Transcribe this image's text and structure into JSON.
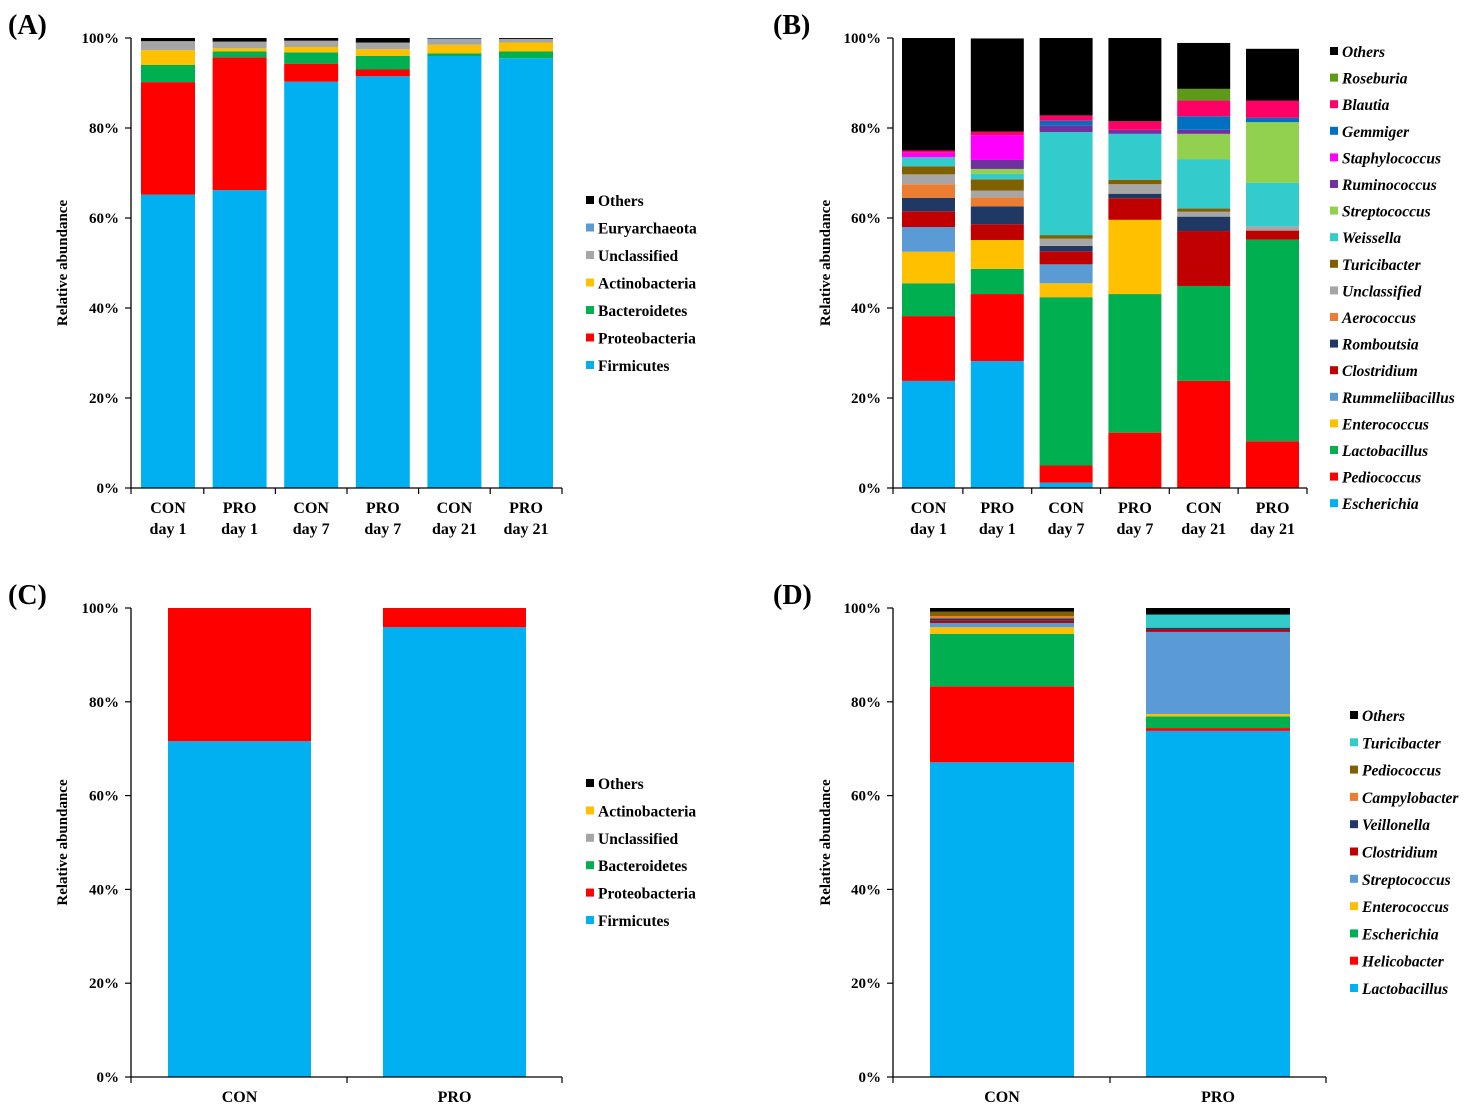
{
  "chart_data": [
    {
      "panel": "(A)",
      "type": "bar",
      "stacked": true,
      "ylabel": "Relative abundance",
      "ylim": [
        0,
        100
      ],
      "yticks": [
        "0%",
        "20%",
        "40%",
        "60%",
        "80%",
        "100%"
      ],
      "categories": [
        [
          "CON",
          "day 1"
        ],
        [
          "PRO",
          "day 1"
        ],
        [
          "CON",
          "day 7"
        ],
        [
          "PRO",
          "day 7"
        ],
        [
          "CON",
          "day 21"
        ],
        [
          "PRO",
          "day 21"
        ]
      ],
      "italic_legend": false,
      "series": [
        {
          "name": "Firmicutes",
          "color": "#00B0F0",
          "values": [
            65.2,
            66.2,
            90.3,
            91.5,
            96.0,
            95.5
          ]
        },
        {
          "name": "Proteobacteria",
          "color": "#FF0000",
          "values": [
            25.0,
            29.5,
            4.0,
            1.5,
            0.0,
            0.0
          ]
        },
        {
          "name": "Bacteroidetes",
          "color": "#00B050",
          "values": [
            3.8,
            1.3,
            2.5,
            3.0,
            0.6,
            1.5
          ]
        },
        {
          "name": "Actinobacteria",
          "color": "#FFC000",
          "values": [
            3.3,
            0.7,
            1.2,
            1.5,
            1.9,
            2.0
          ]
        },
        {
          "name": "Unclassified",
          "color": "#A6A6A6",
          "values": [
            2.0,
            1.5,
            1.4,
            1.5,
            1.2,
            0.8
          ]
        },
        {
          "name": "Euryarchaeota",
          "color": "#5B9BD5",
          "values": [
            0.0,
            0.0,
            0.0,
            0.0,
            0.2,
            0.0
          ]
        },
        {
          "name": "Others",
          "color": "#000000",
          "values": [
            0.7,
            0.8,
            0.6,
            1.0,
            0.1,
            0.2
          ]
        }
      ]
    },
    {
      "panel": "(B)",
      "type": "bar",
      "stacked": true,
      "ylabel": "Relative abundance",
      "ylim": [
        0,
        100
      ],
      "yticks": [
        "0%",
        "20%",
        "40%",
        "60%",
        "80%",
        "100%"
      ],
      "categories": [
        [
          "CON",
          "day 1"
        ],
        [
          "PRO",
          "day 1"
        ],
        [
          "CON",
          "day 7"
        ],
        [
          "PRO",
          "day 7"
        ],
        [
          "CON",
          "day 21"
        ],
        [
          "PRO",
          "day 21"
        ]
      ],
      "italic_legend": true,
      "series": [
        {
          "name": "Escherichia",
          "color": "#00B0F0",
          "values": [
            23.8,
            28.2,
            1.2,
            0.0,
            0.0,
            0.0
          ]
        },
        {
          "name": "Pediococcus",
          "color": "#FF0000",
          "values": [
            14.4,
            14.9,
            3.8,
            12.3,
            23.8,
            10.4
          ]
        },
        {
          "name": "Lactobacillus",
          "color": "#00B050",
          "values": [
            7.3,
            5.6,
            37.4,
            30.8,
            21.1,
            44.8
          ]
        },
        {
          "name": "Enterococcus",
          "color": "#FFC000",
          "values": [
            7.0,
            6.4,
            3.1,
            16.5,
            0.0,
            0.0
          ]
        },
        {
          "name": "Rummeliibacillus",
          "color": "#5B9BD5",
          "values": [
            5.5,
            0.0,
            4.2,
            0.0,
            0.0,
            0.0
          ]
        },
        {
          "name": "Clostridium",
          "color": "#C00000",
          "values": [
            3.5,
            3.5,
            2.9,
            4.8,
            12.2,
            2.0
          ]
        },
        {
          "name": "Romboutsia",
          "color": "#1F3864",
          "values": [
            3.0,
            4.0,
            1.2,
            1.0,
            3.2,
            0.0
          ]
        },
        {
          "name": "Aerococcus",
          "color": "#ED7D31",
          "values": [
            3.0,
            2.0,
            0.0,
            0.0,
            0.0,
            0.0
          ]
        },
        {
          "name": "Unclassified",
          "color": "#A6A6A6",
          "values": [
            2.2,
            1.5,
            1.6,
            2.1,
            1.1,
            1.0
          ]
        },
        {
          "name": "Turicibacter",
          "color": "#806000",
          "values": [
            1.8,
            2.5,
            0.8,
            1.0,
            0.7,
            0.0
          ]
        },
        {
          "name": "Weissella",
          "color": "#33CCCC",
          "values": [
            2.0,
            1.2,
            22.9,
            10.2,
            10.9,
            9.6
          ]
        },
        {
          "name": "Streptococcus",
          "color": "#92D050",
          "values": [
            0.0,
            1.1,
            0.0,
            0.0,
            5.7,
            13.5
          ]
        },
        {
          "name": "Ruminococcus",
          "color": "#7030A0",
          "values": [
            0.0,
            2.0,
            1.5,
            0.9,
            0.9,
            0.0
          ]
        },
        {
          "name": "Staphylococcus",
          "color": "#FF00FF",
          "values": [
            1.0,
            5.5,
            0.0,
            0.0,
            0.0,
            0.0
          ]
        },
        {
          "name": "Gemmiger",
          "color": "#0070C0",
          "values": [
            0.0,
            0.0,
            1.0,
            0.0,
            3.0,
            1.0
          ]
        },
        {
          "name": "Blautia",
          "color": "#FF0066",
          "values": [
            0.5,
            0.8,
            1.2,
            1.9,
            3.5,
            3.8
          ]
        },
        {
          "name": "Roseburia",
          "color": "#5C9A18",
          "values": [
            0.0,
            0.0,
            0.0,
            0.0,
            2.6,
            0.0
          ]
        },
        {
          "name": "Others",
          "color": "#000000",
          "values": [
            25.0,
            20.7,
            17.2,
            18.5,
            10.2,
            11.5
          ]
        }
      ]
    },
    {
      "panel": "(C)",
      "type": "bar",
      "stacked": true,
      "ylabel": "Relative abundance",
      "ylim": [
        0,
        100
      ],
      "yticks": [
        "0%",
        "20%",
        "40%",
        "60%",
        "80%",
        "100%"
      ],
      "categories": [
        [
          "CON"
        ],
        [
          "PRO"
        ]
      ],
      "italic_legend": false,
      "series": [
        {
          "name": "Firmicutes",
          "color": "#00B0F0",
          "values": [
            71.6,
            95.9
          ]
        },
        {
          "name": "Proteobacteria",
          "color": "#FF0000",
          "values": [
            28.4,
            4.1
          ]
        },
        {
          "name": "Bacteroidetes",
          "color": "#00B050",
          "values": [
            0.0,
            0.0
          ]
        },
        {
          "name": "Unclassified",
          "color": "#A6A6A6",
          "values": [
            0.0,
            0.0
          ]
        },
        {
          "name": "Actinobacteria",
          "color": "#FFC000",
          "values": [
            0.0,
            0.0
          ]
        },
        {
          "name": "Others",
          "color": "#000000",
          "values": [
            0.0,
            0.0
          ]
        }
      ]
    },
    {
      "panel": "(D)",
      "type": "bar",
      "stacked": true,
      "ylabel": "Relative abundance",
      "ylim": [
        0,
        100
      ],
      "yticks": [
        "0%",
        "20%",
        "40%",
        "60%",
        "80%",
        "100%"
      ],
      "categories": [
        [
          "CON"
        ],
        [
          "PRO"
        ]
      ],
      "italic_legend": true,
      "series": [
        {
          "name": "Lactobacillus",
          "color": "#00B0F0",
          "values": [
            67.1,
            73.8
          ]
        },
        {
          "name": "Helicobacter",
          "color": "#FF0000",
          "values": [
            16.2,
            0.6
          ]
        },
        {
          "name": "Escherichia",
          "color": "#00B050",
          "values": [
            11.2,
            2.5
          ]
        },
        {
          "name": "Enterococcus",
          "color": "#FFC000",
          "values": [
            1.4,
            0.5
          ]
        },
        {
          "name": "Streptococcus",
          "color": "#5B9BD5",
          "values": [
            0.9,
            17.5
          ]
        },
        {
          "name": "Clostridium",
          "color": "#C00000",
          "values": [
            0.5,
            0.5
          ]
        },
        {
          "name": "Veillonella",
          "color": "#1F3864",
          "values": [
            0.5,
            0.4
          ]
        },
        {
          "name": "Campylobacter",
          "color": "#ED7D31",
          "values": [
            0.5,
            0.0
          ]
        },
        {
          "name": "Pediococcus",
          "color": "#806000",
          "values": [
            0.9,
            0.0
          ]
        },
        {
          "name": "Turicibacter",
          "color": "#33CCCC",
          "values": [
            0.0,
            2.8
          ]
        },
        {
          "name": "Others",
          "color": "#000000",
          "values": [
            0.8,
            1.4
          ]
        }
      ]
    }
  ]
}
